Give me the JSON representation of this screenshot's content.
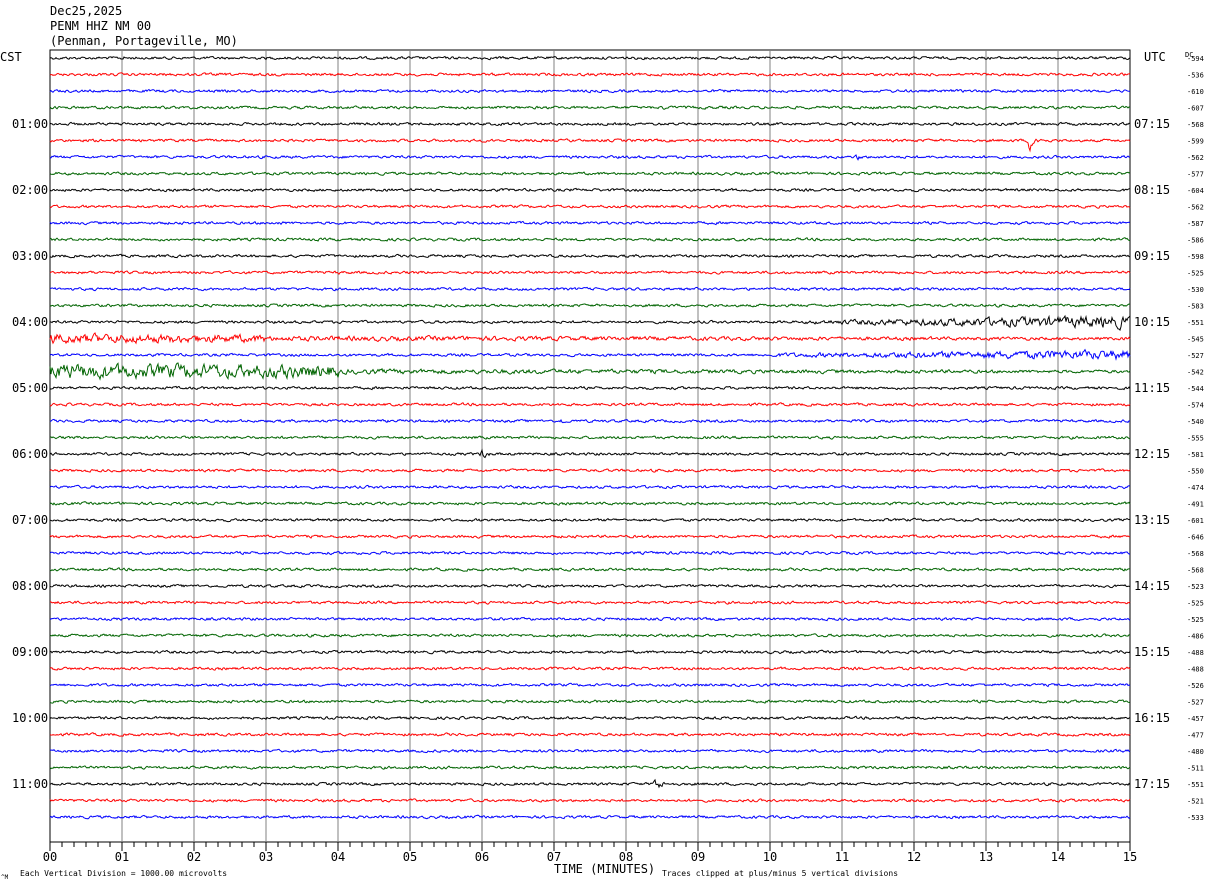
{
  "header": {
    "date": "Dec25,2025",
    "station": "PENM HHZ NM 00",
    "location": "(Penman, Portageville, MO)"
  },
  "left_axis_label": "CST",
  "right_axis_label": "UTC",
  "dc_label": "DC",
  "footer": {
    "xlabel": "TIME (MINUTES)",
    "scale_note": "Each Vertical Division = 1000.00 microvolts",
    "clip_note": "Traces clipped at plus/minus 5 vertical divisions",
    "corner_mark": "^M"
  },
  "colors": {
    "trace_cycle": [
      "#000000",
      "#ff0000",
      "#0000ff",
      "#006400"
    ],
    "grid": "#808080"
  },
  "chart_data": {
    "type": "line",
    "title": "",
    "xlabel": "TIME (MINUTES)",
    "xlim": [
      0,
      15
    ],
    "x_ticks": [
      "00",
      "01",
      "02",
      "03",
      "04",
      "05",
      "06",
      "07",
      "08",
      "09",
      "10",
      "11",
      "12",
      "13",
      "14",
      "15"
    ],
    "cst_hour_labels": [
      "01:00",
      "02:00",
      "03:00",
      "04:00",
      "05:00",
      "06:00",
      "07:00",
      "08:00",
      "09:00",
      "10:00",
      "11:00"
    ],
    "utc_hour_labels": [
      "07:15",
      "08:15",
      "09:15",
      "10:15",
      "11:15",
      "12:15",
      "13:15",
      "14:15",
      "15:15",
      "16:15",
      "17:15"
    ],
    "hour_label_trace_indices": [
      4,
      8,
      12,
      16,
      20,
      24,
      28,
      32,
      36,
      40,
      44
    ],
    "dc_offsets": [
      -594,
      -536,
      -610,
      -607,
      -568,
      -599,
      -562,
      -577,
      -604,
      -562,
      -587,
      -586,
      -598,
      -525,
      -530,
      -583,
      -551,
      -545,
      -527,
      -542,
      -544,
      -574,
      -540,
      -555,
      -581,
      -550,
      -474,
      -491,
      -601,
      -646,
      -568,
      -568,
      -523,
      -525,
      -525,
      -486,
      -488,
      -488,
      -526,
      -527,
      -457,
      -477,
      -480,
      -511,
      -551,
      -521,
      -533
    ],
    "notable_events": [
      {
        "trace": 0,
        "minute": 1.0,
        "amp": 2
      },
      {
        "trace": 3,
        "minute": 8.5,
        "amp": 2
      },
      {
        "trace": 4,
        "minute": 1.0,
        "amp": 2
      },
      {
        "trace": 5,
        "minute": 4.5,
        "amp": 1.5
      },
      {
        "trace": 5,
        "minute": 7.2,
        "amp": 2
      },
      {
        "trace": 5,
        "minute": 13.6,
        "amp": 8
      },
      {
        "trace": 6,
        "minute": 11.2,
        "amp": 3
      },
      {
        "trace": 9,
        "minute": 9.1,
        "amp": 2
      },
      {
        "trace": 10,
        "minute": 3.2,
        "amp": 2
      },
      {
        "trace": 13,
        "minute": 4.0,
        "amp": 2
      },
      {
        "trace": 13,
        "minute": 7.8,
        "amp": 2
      },
      {
        "trace": 13,
        "minute": 13.5,
        "amp": 2
      },
      {
        "trace": 14,
        "minute": 5.1,
        "amp": 2
      },
      {
        "trace": 22,
        "minute": 7.1,
        "amp": 2.5
      },
      {
        "trace": 24,
        "minute": 6.0,
        "amp": 4
      },
      {
        "trace": 41,
        "minute": 5.8,
        "amp": 2
      },
      {
        "trace": 44,
        "minute": 8.4,
        "amp": 6
      }
    ],
    "noisy_segments": [
      {
        "trace": 16,
        "start": 10.5,
        "end": 15.0,
        "amp_start": 1.5,
        "amp_end": 5
      },
      {
        "trace": 17,
        "start": 0.0,
        "end": 3.0,
        "amp_start": 4,
        "amp_end": 3
      },
      {
        "trace": 17,
        "start": 3.0,
        "end": 15.0,
        "amp_start": 2,
        "amp_end": 1.2
      },
      {
        "trace": 18,
        "start": 10.0,
        "end": 15.0,
        "amp_start": 1.5,
        "amp_end": 4
      },
      {
        "trace": 19,
        "start": 0.0,
        "end": 4.0,
        "amp_start": 6,
        "amp_end": 5
      },
      {
        "trace": 19,
        "start": 4.0,
        "end": 15.0,
        "amp_start": 2,
        "amp_end": 1.2
      }
    ]
  }
}
